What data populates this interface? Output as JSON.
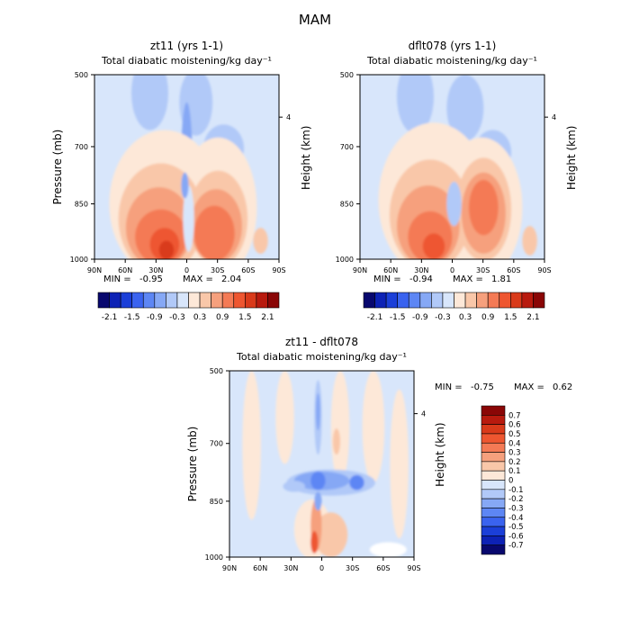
{
  "figure": {
    "title": "MAM"
  },
  "colors": {
    "field": [
      "#08086e",
      "#0d22b5",
      "#1b3fd8",
      "#3a63ef",
      "#5d86f4",
      "#86a8f5",
      "#b1c9f8",
      "#d8e6fb",
      "#fde8d8",
      "#f9c7a9",
      "#f6a07d",
      "#f47a55",
      "#ee5630",
      "#d93a1a",
      "#b81a0e",
      "#8a0606"
    ],
    "diff": [
      "#08086e",
      "#0d22b5",
      "#1b3fd8",
      "#3a63ef",
      "#5d86f4",
      "#86a8f5",
      "#b1c9f8",
      "#d8e6fb",
      "#fde8d8",
      "#f9c7a9",
      "#f6a07d",
      "#f47a55",
      "#ee5630",
      "#d93a1a",
      "#b81a0e",
      "#8a0606"
    ]
  },
  "chart_data": [
    {
      "type": "heatmap",
      "title": "zt11 (yrs 1-1)",
      "subtitle": "Total diabatic moistening/kg day⁻¹",
      "xlabel": "",
      "ylabel": "Pressure (mb)",
      "ylabel_right": "Height (km)",
      "x_ticks": [
        "90N",
        "60N",
        "30N",
        "0",
        "30S",
        "60S",
        "90S"
      ],
      "y_ticks": [
        "500",
        "700",
        "850",
        "1000"
      ],
      "y_ticks_right": [
        "4"
      ],
      "ylim": [
        1000,
        500
      ],
      "stats": {
        "min_label": "MIN =",
        "min": "-0.95",
        "max_label": "MAX =",
        "max": "2.04"
      },
      "colorbar_labels": [
        "-2.1",
        "-1.5",
        "-0.9",
        "-0.3",
        "0.3",
        "0.9",
        "1.5",
        "2.1"
      ]
    },
    {
      "type": "heatmap",
      "title": "dflt078 (yrs 1-1)",
      "subtitle": "Total diabatic moistening/kg day⁻¹",
      "xlabel": "",
      "ylabel": "",
      "ylabel_right": "Height (km)",
      "x_ticks": [
        "90N",
        "60N",
        "30N",
        "0",
        "30S",
        "60S",
        "90S"
      ],
      "y_ticks": [
        "500",
        "700",
        "850",
        "1000"
      ],
      "y_ticks_right": [
        "4"
      ],
      "ylim": [
        1000,
        500
      ],
      "stats": {
        "min_label": "MIN =",
        "min": "-0.94",
        "max_label": "MAX =",
        "max": "1.81"
      },
      "colorbar_labels": [
        "-2.1",
        "-1.5",
        "-0.9",
        "-0.3",
        "0.3",
        "0.9",
        "1.5",
        "2.1"
      ]
    },
    {
      "type": "heatmap",
      "title": "zt11 - dflt078",
      "subtitle": "Total diabatic moistening/kg day⁻¹",
      "xlabel": "",
      "ylabel": "Pressure (mb)",
      "ylabel_right": "Height (km)",
      "x_ticks": [
        "90N",
        "60N",
        "30N",
        "0",
        "30S",
        "60S",
        "90S"
      ],
      "y_ticks": [
        "500",
        "700",
        "850",
        "1000"
      ],
      "y_ticks_right": [
        "4"
      ],
      "ylim": [
        1000,
        500
      ],
      "stats": {
        "min_label": "MIN =",
        "min": "-0.75",
        "max_label": "MAX =",
        "max": "0.62"
      },
      "colorbar_labels": [
        "0.7",
        "0.6",
        "0.5",
        "0.4",
        "0.3",
        "0.2",
        "0.1",
        "0",
        "-0.1",
        "-0.2",
        "-0.3",
        "-0.4",
        "-0.5",
        "-0.6",
        "-0.7"
      ]
    }
  ]
}
